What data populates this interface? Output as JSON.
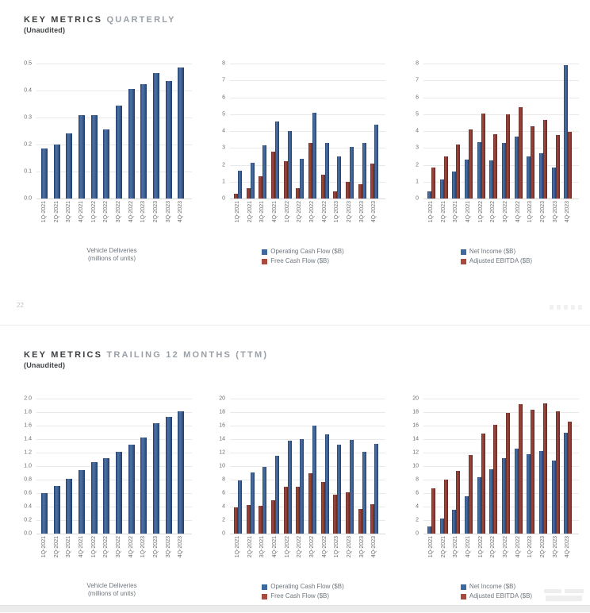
{
  "page": {
    "number": "22"
  },
  "sections": [
    {
      "title_bold": "KEY METRICS",
      "title_light": "QUARTERLY",
      "subtitle": "(Unaudited)"
    },
    {
      "title_bold": "KEY METRICS",
      "title_light": "TRAILING 12 MONTHS (TTM)",
      "subtitle": "(Unaudited)"
    }
  ],
  "colors": {
    "bar_blue": "#3e6296",
    "bar_blue_light": "#4e72a6",
    "bar_blue_dark": "#203c63",
    "bar_red": "#8d3c33",
    "bar_red_light": "#9d4c41",
    "bar_red_dark": "#5f2721",
    "swatch_blue": "#3c699e",
    "swatch_red": "#a94a3f",
    "grid": "#e9e9e9",
    "baseline": "#d9d9d9",
    "axis_text": "#6e6e6e",
    "title": "#3d4043",
    "title_light": "#9aa0a6",
    "legend_text": "#6f767d"
  },
  "categories": [
    "1Q-2021",
    "2Q-2021",
    "3Q-2021",
    "4Q-2021",
    "1Q-2022",
    "2Q-2022",
    "3Q-2022",
    "4Q-2022",
    "1Q-2023",
    "2Q-2023",
    "3Q-2023",
    "4Q-2023"
  ],
  "chart_data": [
    {
      "type": "bar",
      "section": "quarterly",
      "caption": [
        "Vehicle Deliveries",
        "(millions of units)"
      ],
      "ylim": [
        0,
        0.5
      ],
      "yticks": [
        "0.0",
        "0.1",
        "0.2",
        "0.3",
        "0.4",
        "0.5"
      ],
      "series": [
        {
          "name": "Vehicle Deliveries (millions of units)",
          "color": "blue",
          "values": [
            0.185,
            0.201,
            0.241,
            0.309,
            0.31,
            0.255,
            0.344,
            0.405,
            0.423,
            0.466,
            0.435,
            0.485
          ]
        }
      ]
    },
    {
      "type": "bar",
      "section": "quarterly",
      "legend": [
        {
          "label": "Operating Cash Flow ($B)",
          "color": "blue"
        },
        {
          "label": "Free Cash Flow ($B)",
          "color": "red"
        }
      ],
      "ylim": [
        0,
        8
      ],
      "yticks": [
        "0",
        "1",
        "2",
        "3",
        "4",
        "5",
        "6",
        "7",
        "8"
      ],
      "series": [
        {
          "name": "Free Cash Flow ($B)",
          "color": "red",
          "values": [
            0.29,
            0.62,
            1.33,
            2.78,
            2.23,
            0.62,
            3.3,
            1.42,
            0.44,
            1.01,
            0.85,
            2.06
          ]
        },
        {
          "name": "Operating Cash Flow ($B)",
          "color": "blue",
          "values": [
            1.64,
            2.12,
            3.15,
            4.58,
            4.0,
            2.35,
            5.1,
            3.28,
            2.51,
            3.06,
            3.31,
            4.37
          ]
        }
      ]
    },
    {
      "type": "bar",
      "section": "quarterly",
      "legend": [
        {
          "label": "Net Income ($B)",
          "color": "blue"
        },
        {
          "label": "Adjusted EBITDA ($B)",
          "color": "red"
        }
      ],
      "ylim": [
        0,
        8
      ],
      "yticks": [
        "0",
        "1",
        "2",
        "3",
        "4",
        "5",
        "6",
        "7",
        "8"
      ],
      "series": [
        {
          "name": "Net Income ($B)",
          "color": "blue",
          "values": [
            0.44,
            1.14,
            1.62,
            2.32,
            3.32,
            2.26,
            3.29,
            3.69,
            2.51,
            2.7,
            1.85,
            7.93
          ]
        },
        {
          "name": "Adjusted EBITDA ($B)",
          "color": "red",
          "values": [
            1.84,
            2.49,
            3.2,
            4.09,
            5.02,
            3.79,
            4.97,
            5.4,
            4.27,
            4.65,
            3.76,
            3.95
          ]
        }
      ]
    },
    {
      "type": "bar",
      "section": "ttm",
      "caption": [
        "Vehicle Deliveries",
        "(millions of units)"
      ],
      "ylim": [
        0,
        2.0
      ],
      "yticks": [
        "0.0",
        "0.2",
        "0.4",
        "0.6",
        "0.8",
        "1.0",
        "1.2",
        "1.4",
        "1.6",
        "1.8",
        "2.0"
      ],
      "series": [
        {
          "name": "Vehicle Deliveries (millions of units)",
          "color": "blue",
          "values": [
            0.595,
            0.706,
            0.808,
            0.936,
            1.061,
            1.115,
            1.217,
            1.314,
            1.427,
            1.638,
            1.729,
            1.809
          ]
        }
      ]
    },
    {
      "type": "bar",
      "section": "ttm",
      "legend": [
        {
          "label": "Operating Cash Flow ($B)",
          "color": "blue"
        },
        {
          "label": "Free Cash Flow ($B)",
          "color": "red"
        }
      ],
      "ylim": [
        0,
        20
      ],
      "yticks": [
        "0",
        "2",
        "4",
        "6",
        "8",
        "10",
        "12",
        "14",
        "16",
        "18",
        "20"
      ],
      "series": [
        {
          "name": "Free Cash Flow ($B)",
          "color": "red",
          "values": [
            3.9,
            4.2,
            4.1,
            5.0,
            6.9,
            7.0,
            8.9,
            7.6,
            5.8,
            6.1,
            3.7,
            4.4
          ]
        },
        {
          "name": "Operating Cash Flow ($B)",
          "color": "blue",
          "values": [
            7.9,
            9.1,
            9.9,
            11.5,
            13.8,
            14.0,
            16.0,
            14.7,
            13.2,
            13.9,
            12.1,
            13.3
          ]
        }
      ]
    },
    {
      "type": "bar",
      "section": "ttm",
      "legend": [
        {
          "label": "Net Income ($B)",
          "color": "blue"
        },
        {
          "label": "Adjusted EBITDA ($B)",
          "color": "red"
        }
      ],
      "ylim": [
        0,
        20
      ],
      "yticks": [
        "0",
        "2",
        "4",
        "6",
        "8",
        "10",
        "12",
        "14",
        "16",
        "18",
        "20"
      ],
      "series": [
        {
          "name": "Net Income ($B)",
          "color": "blue",
          "values": [
            1.1,
            2.2,
            3.5,
            5.5,
            8.4,
            9.5,
            11.2,
            12.6,
            11.8,
            12.2,
            10.8,
            15.0
          ]
        },
        {
          "name": "Adjusted EBITDA ($B)",
          "color": "red",
          "values": [
            6.7,
            8.0,
            9.3,
            11.6,
            14.8,
            16.1,
            17.9,
            19.2,
            18.4,
            19.3,
            18.1,
            16.6
          ]
        }
      ]
    }
  ]
}
